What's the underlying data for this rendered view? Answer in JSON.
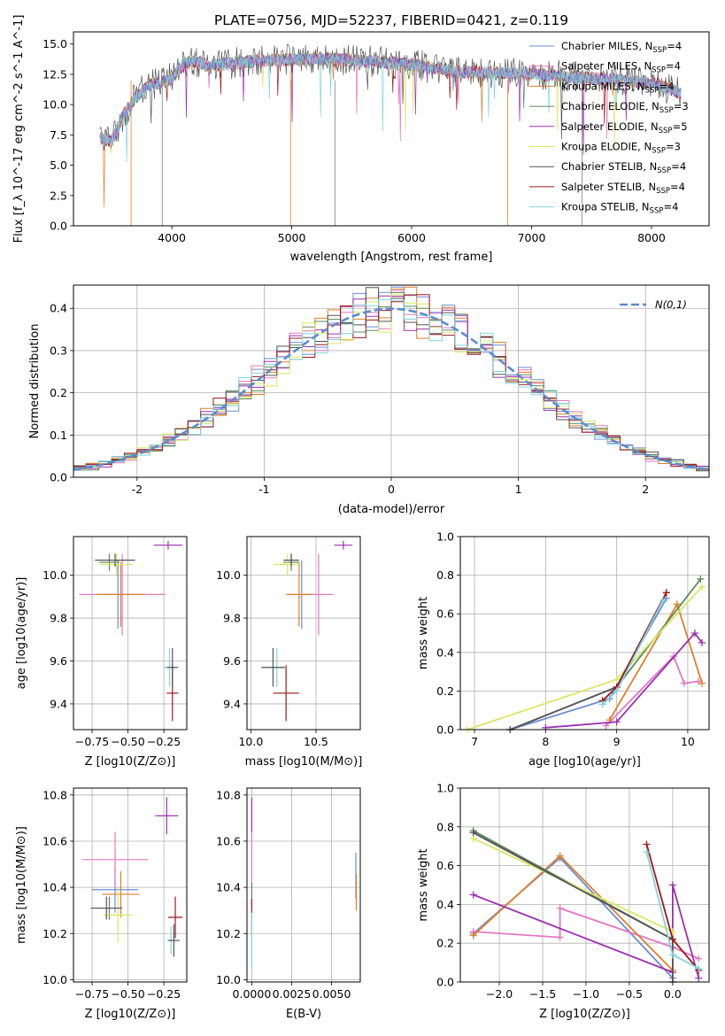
{
  "chart_data": [
    {
      "id": "spectrum",
      "type": "line",
      "title": "PLATE=0756, MJD=52237, FIBERID=0421, z=0.119",
      "xlabel": "wavelength [Angstrom, rest frame]",
      "ylabel": "Flux [f_λ 10^-17 erg cm^-2 s^-1 A^-1]",
      "xlim": [
        3180,
        8480
      ],
      "ylim": [
        0,
        16
      ],
      "xticks": [
        4000,
        5000,
        6000,
        7000,
        8000
      ],
      "yticks": [
        0.0,
        2.5,
        5.0,
        7.5,
        10.0,
        12.5,
        15.0
      ],
      "ytick_labels": [
        "0.0",
        "2.5",
        "5.0",
        "7.5",
        "10.0",
        "12.5",
        "15.0"
      ],
      "grid": false,
      "legend_position": "upper right",
      "data_trend": {
        "x": [
          3400,
          3500,
          3600,
          3700,
          3800,
          3900,
          4000,
          4100,
          4200,
          4300,
          4500,
          4700,
          5000,
          5300,
          5600,
          6000,
          6400,
          6800,
          7200,
          7600,
          8000,
          8250
        ],
        "y": [
          7.2,
          7.0,
          9.2,
          10.6,
          11.6,
          11.8,
          12.2,
          13.4,
          13.6,
          13.2,
          13.4,
          13.6,
          13.7,
          13.8,
          13.6,
          13.3,
          12.7,
          12.6,
          12.4,
          12.1,
          11.8,
          10.9
        ]
      },
      "series": [
        {
          "name": "Chabrier MILES",
          "nssp": "4"
        },
        {
          "name": "Salpeter MILES",
          "nssp": "4"
        },
        {
          "name": "Kroupa MILES",
          "nssp": "4"
        },
        {
          "name": "Chabrier ELODIE",
          "nssp": "3"
        },
        {
          "name": "Salpeter ELODIE",
          "nssp": "5"
        },
        {
          "name": "Kroupa ELODIE",
          "nssp": "3"
        },
        {
          "name": "Chabrier STELIB",
          "nssp": "4"
        },
        {
          "name": "Salpeter STELIB",
          "nssp": "4"
        },
        {
          "name": "Kroupa STELIB",
          "nssp": "4"
        }
      ]
    },
    {
      "id": "residuals",
      "type": "line",
      "xlabel": "(data-model)/error",
      "ylabel": "Normed distribution",
      "xlim": [
        -2.5,
        2.5
      ],
      "ylim": [
        0,
        0.455
      ],
      "xticks": [
        -2,
        -1,
        0,
        1,
        2
      ],
      "yticks": [
        0.0,
        0.1,
        0.2,
        0.3,
        0.4
      ],
      "ytick_labels": [
        "0.0",
        "0.1",
        "0.2",
        "0.3",
        "0.4"
      ],
      "grid": true,
      "legend": "N(0,1)",
      "legend_position": "upper right",
      "bins": 50
    },
    {
      "id": "age_vs_Z",
      "type": "scatter",
      "xlabel": "Z [log10(Z/Z⊙)]",
      "ylabel": "age  [log10(age/yr)]",
      "xlim": [
        -0.88,
        -0.09
      ],
      "ylim": [
        9.28,
        10.18
      ],
      "xticks": [
        -0.75,
        -0.5,
        -0.25
      ],
      "xtick_labels": [
        "−0.75",
        "−0.50",
        "−0.25"
      ],
      "yticks": [
        9.4,
        9.6,
        9.8,
        10.0
      ],
      "ytick_labels": [
        "9.4",
        "9.6",
        "9.8",
        "10.0"
      ],
      "grid": true,
      "points": [
        {
          "series": 0,
          "x": -0.57,
          "y": 9.91,
          "xerr": 0.1,
          "yerr": 0.16
        },
        {
          "series": 1,
          "x": -0.54,
          "y": 9.91,
          "xerr": 0.3,
          "yerr": 0.19
        },
        {
          "series": 2,
          "x": -0.55,
          "y": 9.91,
          "xerr": 0.17,
          "yerr": 0.15
        },
        {
          "series": 3,
          "x": -0.63,
          "y": 10.06,
          "xerr": 0.07,
          "yerr": 0.04
        },
        {
          "series": 4,
          "x": -0.22,
          "y": 10.14,
          "xerr": 0.1,
          "yerr": 0.02
        },
        {
          "series": 5,
          "x": -0.58,
          "y": 10.05,
          "xerr": 0.11,
          "yerr": 0.05
        },
        {
          "series": 6,
          "x": -0.59,
          "y": 10.07,
          "xerr": 0.14,
          "yerr": 0.03
        },
        {
          "series": 7,
          "x": -0.19,
          "y": 9.45,
          "xerr": 0.04,
          "yerr": 0.13
        },
        {
          "series": 8,
          "x": -0.21,
          "y": 9.57,
          "xerr": 0.04,
          "yerr": 0.09
        },
        {
          "series": 6,
          "x": -0.19,
          "y": 9.57,
          "xerr": 0.04,
          "yerr": 0.09
        }
      ]
    },
    {
      "id": "age_vs_mass",
      "type": "scatter",
      "xlabel": "mass [log10(M/M⊙)]",
      "ylabel": "",
      "xlim": [
        9.97,
        10.84
      ],
      "ylim": [
        9.28,
        10.18
      ],
      "xticks": [
        10.0,
        10.5
      ],
      "xtick_labels": [
        "10.0",
        "10.5"
      ],
      "yticks": [
        9.4,
        9.6,
        9.8,
        10.0
      ],
      "ytick_labels": [
        "9.4",
        "9.6",
        "9.8",
        "10.0"
      ],
      "grid": true,
      "points": [
        {
          "series": 0,
          "x": 10.39,
          "y": 9.91,
          "xerr": 0.1,
          "yerr": 0.16
        },
        {
          "series": 1,
          "x": 10.52,
          "y": 9.91,
          "xerr": 0.11,
          "yerr": 0.19
        },
        {
          "series": 2,
          "x": 10.37,
          "y": 9.91,
          "xerr": 0.1,
          "yerr": 0.15
        },
        {
          "series": 3,
          "x": 10.31,
          "y": 10.06,
          "xerr": 0.06,
          "yerr": 0.04
        },
        {
          "series": 4,
          "x": 10.71,
          "y": 10.14,
          "xerr": 0.07,
          "yerr": 0.02
        },
        {
          "series": 5,
          "x": 10.28,
          "y": 10.05,
          "xerr": 0.1,
          "yerr": 0.05
        },
        {
          "series": 6,
          "x": 10.31,
          "y": 10.07,
          "xerr": 0.06,
          "yerr": 0.03
        },
        {
          "series": 7,
          "x": 10.27,
          "y": 9.45,
          "xerr": 0.1,
          "yerr": 0.13
        },
        {
          "series": 8,
          "x": 10.2,
          "y": 9.57,
          "xerr": 0.06,
          "yerr": 0.09
        },
        {
          "series": 6,
          "x": 10.17,
          "y": 9.57,
          "xerr": 0.09,
          "yerr": 0.09
        }
      ]
    },
    {
      "id": "weight_vs_age",
      "type": "line",
      "xlabel": "age  [log10(age/yr)]",
      "ylabel": "mass weight",
      "xlim": [
        6.8,
        10.3
      ],
      "ylim": [
        0,
        1.0
      ],
      "xticks": [
        7,
        8,
        9,
        10
      ],
      "xtick_labels": [
        "7",
        "8",
        "9",
        "10"
      ],
      "yticks": [
        0.0,
        0.2,
        0.4,
        0.6,
        0.8,
        1.0
      ],
      "ytick_labels": [
        "0.0",
        "0.2",
        "0.4",
        "0.6",
        "0.8",
        "1.0"
      ],
      "grid": true,
      "series": [
        {
          "series": 0,
          "x": [
            7.5,
            8.9,
            9.7
          ],
          "y": [
            0.0,
            0.16,
            0.68
          ]
        },
        {
          "series": 1,
          "x": [
            8.85,
            9.8,
            9.95,
            10.15
          ],
          "y": [
            0.02,
            0.38,
            0.24,
            0.25
          ]
        },
        {
          "series": 2,
          "x": [
            8.9,
            9.85,
            10.2
          ],
          "y": [
            0.05,
            0.65,
            0.24
          ]
        },
        {
          "series": 3,
          "x": [
            7.5,
            9.0,
            10.18
          ],
          "y": [
            0.0,
            0.22,
            0.78
          ]
        },
        {
          "series": 4,
          "x": [
            8.0,
            9.0,
            10.1,
            10.2
          ],
          "y": [
            0.01,
            0.04,
            0.5,
            0.45
          ]
        },
        {
          "series": 5,
          "x": [
            6.9,
            9.0,
            10.2
          ],
          "y": [
            0.0,
            0.26,
            0.74
          ]
        },
        {
          "series": 6,
          "x": [
            7.5,
            9.0,
            9.7
          ],
          "y": [
            0.0,
            0.22,
            0.71
          ]
        },
        {
          "series": 7,
          "x": [
            8.8,
            9.0,
            9.7
          ],
          "y": [
            0.15,
            0.22,
            0.71
          ]
        },
        {
          "series": 8,
          "x": [
            8.8,
            9.0,
            9.65
          ],
          "y": [
            0.13,
            0.2,
            0.67
          ]
        }
      ]
    },
    {
      "id": "mass_vs_Z",
      "type": "scatter",
      "xlabel": "Z [log10(Z/Z⊙)]",
      "ylabel": "mass [log10(M/M⊙)]",
      "xlim": [
        -0.88,
        -0.09
      ],
      "ylim": [
        9.99,
        10.83
      ],
      "xticks": [
        -0.75,
        -0.5,
        -0.25
      ],
      "xtick_labels": [
        "−0.75",
        "−0.50",
        "−0.25"
      ],
      "yticks": [
        10.0,
        10.2,
        10.4,
        10.6,
        10.8
      ],
      "ytick_labels": [
        "10.0",
        "10.2",
        "10.4",
        "10.6",
        "10.8"
      ],
      "grid": true,
      "points": [
        {
          "series": 0,
          "x": -0.59,
          "y": 10.39,
          "xerr": 0.16,
          "yerr": 0.1
        },
        {
          "series": 1,
          "x": -0.59,
          "y": 10.52,
          "xerr": 0.23,
          "yerr": 0.12
        },
        {
          "series": 2,
          "x": -0.55,
          "y": 10.37,
          "xerr": 0.13,
          "yerr": 0.1
        },
        {
          "series": 3,
          "x": -0.63,
          "y": 10.31,
          "xerr": 0.07,
          "yerr": 0.05
        },
        {
          "series": 4,
          "x": -0.23,
          "y": 10.71,
          "xerr": 0.08,
          "yerr": 0.08
        },
        {
          "series": 5,
          "x": -0.57,
          "y": 10.28,
          "xerr": 0.1,
          "yerr": 0.12
        },
        {
          "series": 6,
          "x": -0.65,
          "y": 10.31,
          "xerr": 0.11,
          "yerr": 0.05
        },
        {
          "series": 7,
          "x": -0.17,
          "y": 10.27,
          "xerr": 0.05,
          "yerr": 0.09
        },
        {
          "series": 8,
          "x": -0.2,
          "y": 10.17,
          "xerr": 0.03,
          "yerr": 0.06
        },
        {
          "series": 6,
          "x": -0.18,
          "y": 10.17,
          "xerr": 0.04,
          "yerr": 0.07
        }
      ]
    },
    {
      "id": "mass_vs_ebv",
      "type": "scatter",
      "xlabel": "E(B-V)",
      "ylabel": "",
      "xlim": [
        -0.0003,
        0.0068
      ],
      "ylim": [
        9.99,
        10.83
      ],
      "xticks": [
        0.0,
        0.0025,
        0.005
      ],
      "xtick_labels": [
        "0.0000",
        "0.0025",
        "0.0050"
      ],
      "yticks": [
        10.0,
        10.2,
        10.4,
        10.6,
        10.8
      ],
      "ytick_labels": [
        "10.0",
        "10.2",
        "10.4",
        "10.6",
        "10.8"
      ],
      "grid": true,
      "points": [
        {
          "series": 4,
          "x": 0.0,
          "y": 10.71,
          "xerr": 0,
          "yerr": 0.08
        },
        {
          "series": 1,
          "x": 0.0,
          "y": 10.52,
          "xerr": 0,
          "yerr": 0.12
        },
        {
          "series": 3,
          "x": 0.0,
          "y": 10.37,
          "xerr": 0,
          "yerr": 0.05
        },
        {
          "series": 7,
          "x": 0.0,
          "y": 10.27,
          "xerr": 0,
          "yerr": 0.08
        },
        {
          "series": 8,
          "x": 0.0,
          "y": 10.17,
          "xerr": 0,
          "yerr": 0.12
        },
        {
          "series": 0,
          "x": 0.00652,
          "y": 10.45,
          "xerr": 0,
          "yerr": 0.1
        },
        {
          "series": 2,
          "x": 0.00655,
          "y": 10.38,
          "xerr": 0,
          "yerr": 0.08
        }
      ]
    },
    {
      "id": "weight_vs_Z",
      "type": "line",
      "xlabel": "Z [log10(Z/Z⊙)]",
      "ylabel": "mass weight",
      "xlim": [
        -2.45,
        0.42
      ],
      "ylim": [
        0,
        1.0
      ],
      "xticks": [
        -2.0,
        -1.5,
        -1.0,
        -0.5,
        0.0
      ],
      "xtick_labels": [
        "−2.0",
        "−1.5",
        "−1.0",
        "−0.5",
        "0.0"
      ],
      "yticks": [
        0.0,
        0.2,
        0.4,
        0.6,
        0.8,
        1.0
      ],
      "ytick_labels": [
        "0.0",
        "0.2",
        "0.4",
        "0.6",
        "0.8",
        "1.0"
      ],
      "grid": true,
      "series": [
        {
          "series": 0,
          "x": [
            -2.3,
            -1.3,
            0.0
          ],
          "y": [
            0.25,
            0.64,
            0.02
          ]
        },
        {
          "series": 1,
          "x": [
            -2.3,
            -1.3,
            -1.3,
            0.0,
            0.3
          ],
          "y": [
            0.26,
            0.23,
            0.38,
            0.18,
            0.12
          ]
        },
        {
          "series": 2,
          "x": [
            -2.3,
            -1.3,
            0.0
          ],
          "y": [
            0.24,
            0.65,
            0.06
          ]
        },
        {
          "series": 3,
          "x": [
            -2.3,
            0.0,
            0.0
          ],
          "y": [
            0.78,
            0.22,
            0.0
          ]
        },
        {
          "series": 4,
          "x": [
            -2.3,
            0.0,
            0.0,
            0.3
          ],
          "y": [
            0.45,
            0.05,
            0.5,
            0.02
          ]
        },
        {
          "series": 5,
          "x": [
            -2.3,
            0.0,
            0.0
          ],
          "y": [
            0.74,
            0.26,
            0.0
          ]
        },
        {
          "series": 6,
          "x": [
            -2.3,
            0.0,
            0.0
          ],
          "y": [
            0.77,
            0.22,
            0.0
          ]
        },
        {
          "series": 7,
          "x": [
            -0.3,
            0.0,
            0.3
          ],
          "y": [
            0.71,
            0.22,
            0.06
          ]
        },
        {
          "series": 8,
          "x": [
            -0.3,
            0.0,
            0.3
          ],
          "y": [
            0.67,
            0.14,
            0.07
          ]
        }
      ]
    }
  ],
  "series_colors": [
    "#6b8dd6",
    "#e377c2",
    "#e07f2a",
    "#5a8a5a",
    "#9b30b0",
    "#d8e860",
    "#555555",
    "#a01818",
    "#80d4dc"
  ],
  "model_line_color": "#808080",
  "normal_curve_color": "#5b8bd0"
}
